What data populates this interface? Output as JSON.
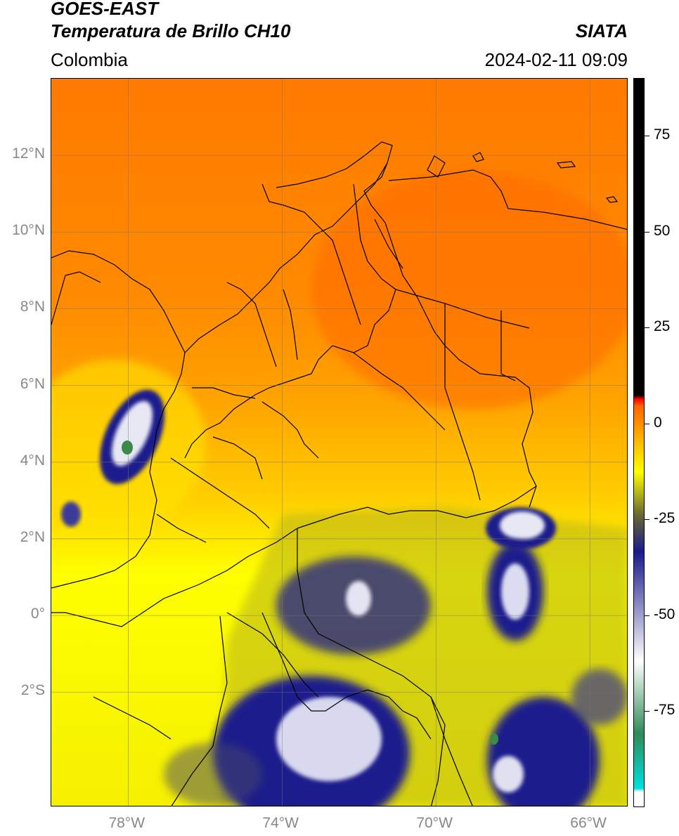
{
  "header": {
    "title_line1": "GOES-EAST",
    "title_line2": "Temperatura de Brillo CH10",
    "region": "Colombia",
    "source": "SIATA",
    "datetime": "2024-02-11 09:09"
  },
  "map": {
    "lon_range": [
      -80,
      -65
    ],
    "lat_range": [
      -5,
      14
    ],
    "lat_ticks": [
      {
        "value": 12,
        "label": "12°N"
      },
      {
        "value": 10,
        "label": "10°N"
      },
      {
        "value": 8,
        "label": "8°N"
      },
      {
        "value": 6,
        "label": "6°N"
      },
      {
        "value": 4,
        "label": "4°N"
      },
      {
        "value": 2,
        "label": "2°N"
      },
      {
        "value": 0,
        "label": "0°"
      },
      {
        "value": -2,
        "label": "2°S"
      }
    ],
    "lon_ticks": [
      {
        "value": -78,
        "label": "78°W"
      },
      {
        "value": -74,
        "label": "74°W"
      },
      {
        "value": -70,
        "label": "70°W"
      },
      {
        "value": -66,
        "label": "66°W"
      }
    ],
    "grid": true
  },
  "colorbar": {
    "range": [
      -100,
      90
    ],
    "ticks": [
      {
        "value": 75,
        "label": "75"
      },
      {
        "value": 50,
        "label": "50"
      },
      {
        "value": 25,
        "label": "25"
      },
      {
        "value": 0,
        "label": "0"
      },
      {
        "value": -25,
        "label": "-25"
      },
      {
        "value": -50,
        "label": "-50"
      },
      {
        "value": -75,
        "label": "-75"
      }
    ],
    "colors": [
      "#ffffff",
      "#00e0e0",
      "#2e8b57",
      "#ffffff",
      "#1a1a8c",
      "#666633",
      "#ffff00",
      "#ff9900",
      "#ff6600",
      "#ff0000",
      "#000000"
    ]
  }
}
